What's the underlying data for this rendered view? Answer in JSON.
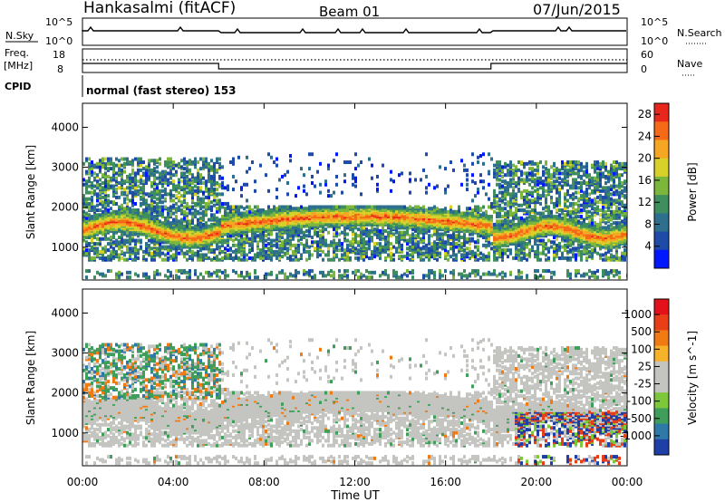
{
  "header": {
    "title": "Hankasalmi (fitACF)",
    "beam": "Beam 01",
    "date": "07/Jun/2015"
  },
  "status_panels": {
    "nsky": {
      "label": "N.Sky",
      "ticks": [
        "10^5",
        "10^0"
      ],
      "right_label": "N.Search",
      "right_ticks": [
        "10^5",
        "10^0"
      ]
    },
    "freq": {
      "label_line1": "Freq.",
      "label_line2": "[MHz]",
      "ticks": [
        "18",
        "8"
      ],
      "right_label": "Nave",
      "right_ticks": [
        "60",
        "0"
      ]
    },
    "cpid": {
      "label": "CPID",
      "value": "normal (fast stereo) 153"
    }
  },
  "chart_data": [
    {
      "type": "heatmap",
      "panel": "power",
      "ylabel": "Slant Range [km]",
      "xlabel": "",
      "yticks": [
        "1000",
        "2000",
        "3000",
        "4000"
      ],
      "ylim": [
        180,
        4600
      ],
      "xlim_hours": [
        0,
        24
      ],
      "xtick_labels": [
        "00:00",
        "04:00",
        "08:00",
        "12:00",
        "16:00",
        "20:00",
        "00:00"
      ],
      "colorbar": {
        "label": "Power [dB]",
        "ticks": [
          "4",
          "8",
          "12",
          "16",
          "20",
          "24",
          "28"
        ],
        "range": [
          0,
          30
        ],
        "colors": [
          "#0018ff",
          "#1e4aa8",
          "#2e6f8e",
          "#3f8f5e",
          "#7db63c",
          "#d8d12a",
          "#f5a623",
          "#f46a16",
          "#e8271c"
        ]
      }
    },
    {
      "type": "heatmap",
      "panel": "velocity",
      "ylabel": "Slant Range [km]",
      "xlabel": "Time UT",
      "yticks": [
        "1000",
        "2000",
        "3000",
        "4000"
      ],
      "ylim": [
        180,
        4600
      ],
      "xlim_hours": [
        0,
        24
      ],
      "xtick_labels": [
        "00:00",
        "04:00",
        "08:00",
        "12:00",
        "16:00",
        "20:00",
        "00:00"
      ],
      "colorbar": {
        "label": "Velocity [m s^-1]",
        "ticks": [
          "1000",
          "500",
          "100",
          "25",
          "-25",
          "-100",
          "-500",
          "-1000"
        ],
        "colors": [
          "#1f3fa8",
          "#2f79a8",
          "#3f9e5a",
          "#7cc83a",
          "#c4c4c0",
          "#c4c4c0",
          "#f7b22b",
          "#f07a14",
          "#e83f18",
          "#e3121a"
        ]
      }
    }
  ]
}
